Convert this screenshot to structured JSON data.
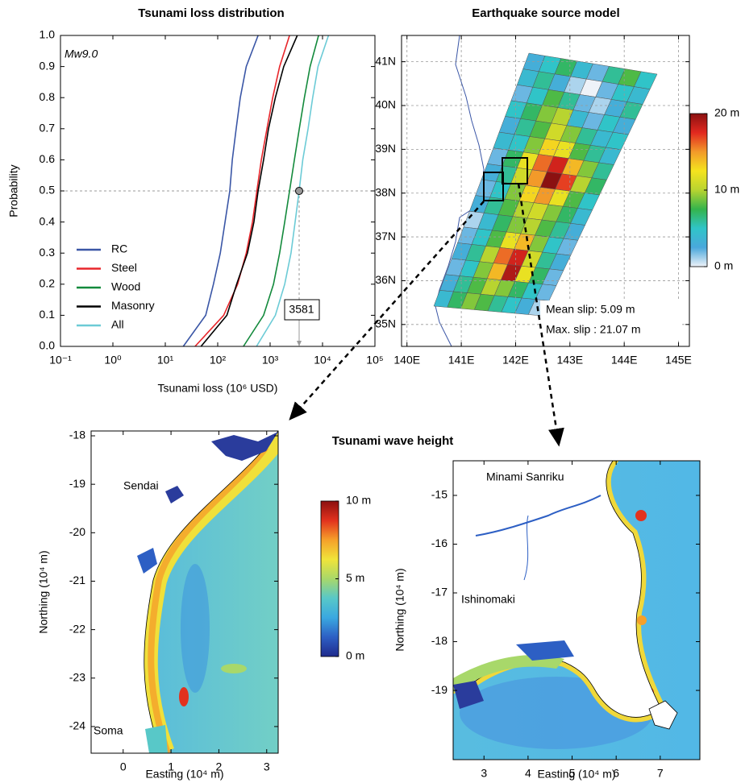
{
  "chart_data": [
    {
      "type": "line",
      "title": "Tsunami loss distribution",
      "xlabel": "Tsunami loss (10⁶ USD)",
      "ylabel": "Probability",
      "annotation": "Mw9.0",
      "xscale": "log",
      "xlim": [
        0.1,
        100000
      ],
      "xticks": [
        {
          "value": 0.1,
          "label": "10⁻¹"
        },
        {
          "value": 1,
          "label": "10⁰"
        },
        {
          "value": 10,
          "label": "10¹"
        },
        {
          "value": 100,
          "label": "10²"
        },
        {
          "value": 1000,
          "label": "10³"
        },
        {
          "value": 10000,
          "label": "10⁴"
        },
        {
          "value": 100000,
          "label": "10⁵"
        }
      ],
      "ylim": [
        0,
        1
      ],
      "yticks": [
        {
          "value": 0,
          "label": "0.0"
        },
        0.1,
        0.2,
        0.3,
        0.4,
        0.5,
        0.6,
        0.7,
        0.8,
        0.9,
        {
          "value": 1,
          "label": "1.0"
        }
      ],
      "legend": "lower left",
      "series": [
        {
          "name": "RC",
          "color": "#3a56a6",
          "x": [
            22,
            59,
            83,
            112,
            138,
            170,
            190,
            225,
            270,
            350,
            590
          ],
          "values": [
            0,
            0.1,
            0.2,
            0.3,
            0.4,
            0.5,
            0.6,
            0.7,
            0.8,
            0.9,
            1
          ]
        },
        {
          "name": "Steel",
          "color": "#e8262b",
          "x": [
            37,
            130,
            240,
            350,
            460,
            560,
            680,
            870,
            1120,
            1520,
            2350
          ],
          "values": [
            0,
            0.1,
            0.2,
            0.3,
            0.4,
            0.5,
            0.6,
            0.7,
            0.8,
            0.9,
            1
          ]
        },
        {
          "name": "Wood",
          "color": "#138a3c",
          "x": [
            310,
            750,
            1160,
            1520,
            1900,
            2350,
            2900,
            3600,
            4500,
            5800,
            8400
          ],
          "values": [
            0,
            0.1,
            0.2,
            0.3,
            0.4,
            0.5,
            0.6,
            0.7,
            0.8,
            0.9,
            1
          ]
        },
        {
          "name": "Masonry",
          "color": "#000000",
          "x": [
            48,
            150,
            230,
            370,
            490,
            590,
            750,
            930,
            1260,
            1820,
            3300
          ],
          "values": [
            0,
            0.1,
            0.2,
            0.3,
            0.4,
            0.5,
            0.6,
            0.7,
            0.8,
            0.9,
            1
          ]
        },
        {
          "name": "All",
          "color": "#6ccbd6",
          "x": [
            550,
            1260,
            1900,
            2500,
            3000,
            3581,
            4200,
            5300,
            6500,
            8200,
            13000
          ],
          "values": [
            0,
            0.1,
            0.2,
            0.3,
            0.4,
            0.5,
            0.6,
            0.7,
            0.8,
            0.9,
            1
          ]
        }
      ],
      "marker_x": 3581,
      "marker_y": 0.5
    },
    {
      "type": "heatmap",
      "title": "Earthquake source model",
      "xlim": [
        139.9,
        145.2
      ],
      "xticks": [
        {
          "value": 140,
          "label": "140E"
        },
        {
          "value": 141,
          "label": "141E"
        },
        {
          "value": 142,
          "label": "142E"
        },
        {
          "value": 143,
          "label": "143E"
        },
        {
          "value": 144,
          "label": "144E"
        },
        {
          "value": 145,
          "label": "145E"
        }
      ],
      "ylim": [
        34.5,
        41.6
      ],
      "yticks": [
        {
          "value": 35,
          "label": "35N"
        },
        {
          "value": 36,
          "label": "36N"
        },
        {
          "value": 37,
          "label": "37N"
        },
        {
          "value": 38,
          "label": "38N"
        },
        {
          "value": 39,
          "label": "39N"
        },
        {
          "value": 40,
          "label": "40N"
        },
        {
          "value": 41,
          "label": "41N"
        }
      ],
      "grid": true,
      "z": [
        [
          3,
          5,
          7,
          4,
          2,
          6,
          8,
          5
        ],
        [
          4,
          6,
          3,
          1,
          0,
          2,
          5,
          4
        ],
        [
          2,
          5,
          8,
          6,
          2,
          1,
          3,
          6
        ],
        [
          5,
          7,
          9,
          10,
          4,
          2,
          5,
          3
        ],
        [
          3,
          6,
          8,
          11,
          9,
          6,
          4,
          5
        ],
        [
          4,
          5,
          9,
          13,
          12,
          8,
          6,
          4
        ],
        [
          2,
          7,
          12,
          16,
          18,
          14,
          9,
          6
        ],
        [
          3,
          6,
          11,
          15,
          20,
          17,
          10,
          7
        ],
        [
          2,
          5,
          9,
          13,
          15,
          12,
          8,
          5
        ],
        [
          3,
          6,
          8,
          10,
          11,
          9,
          7,
          4
        ],
        [
          1,
          4,
          7,
          9,
          10,
          8,
          6,
          3
        ],
        [
          2,
          5,
          8,
          12,
          14,
          9,
          5,
          2
        ],
        [
          3,
          6,
          10,
          16,
          18,
          11,
          6,
          3
        ],
        [
          2,
          5,
          9,
          14,
          19,
          12,
          7,
          2
        ],
        [
          3,
          6,
          8,
          10,
          9,
          7,
          5,
          2
        ],
        [
          4,
          7,
          9,
          8,
          6,
          5,
          3,
          1
        ]
      ],
      "clim": [
        0,
        20
      ],
      "colorscale": [
        "#eef2f8",
        "#4aa8dc",
        "#30c4c8",
        "#34b44c",
        "#b8d430",
        "#f5e41e",
        "#f29a2a",
        "#e2281f",
        "#8b1111"
      ],
      "colorbar_ticks": [
        {
          "value": 20,
          "label": "20 m"
        },
        {
          "value": 10,
          "label": "10 m"
        },
        {
          "value": 0,
          "label": "0 m"
        }
      ],
      "annotations": [
        "Mean slip: 5.09 m",
        "Max. slip : 21.07 m"
      ]
    },
    {
      "type": "map",
      "title": "Tsunami wave height",
      "xlabel": "Easting (10⁴ m)",
      "ylabel": "Northing (10⁴ m)",
      "xlim": [
        -0.67,
        3.24
      ],
      "xticks": [
        0,
        1,
        2,
        3
      ],
      "ylim": [
        -24.55,
        -17.9
      ],
      "yticks": [
        -24,
        -23,
        -22,
        -21,
        -20,
        -19,
        -18
      ],
      "labels": [
        "Sendai",
        "Soma"
      ],
      "clim": [
        0,
        10
      ],
      "colorscale": [
        "#1f2a8c",
        "#2d5fc4",
        "#3aa8e0",
        "#58c8c8",
        "#a8d86a",
        "#f0e43a",
        "#f5a02a",
        "#e2321e",
        "#8c1010"
      ],
      "colorbar_ticks": [
        {
          "value": 10,
          "label": "10 m"
        },
        {
          "value": 5,
          "label": "5 m"
        },
        {
          "value": 0,
          "label": "0 m"
        }
      ]
    },
    {
      "type": "map",
      "xlabel": "Easting (10⁴ m)",
      "ylabel": "Northing (10⁴ m)",
      "xlim": [
        2.3,
        7.9
      ],
      "xticks": [
        3,
        4,
        5,
        6,
        7
      ],
      "ylim": [
        -20.42,
        -14.29
      ],
      "yticks": [
        -19,
        -18,
        -17,
        -16,
        -15
      ],
      "labels": [
        "Minami Sanriku",
        "Ishinomaki"
      ]
    }
  ]
}
